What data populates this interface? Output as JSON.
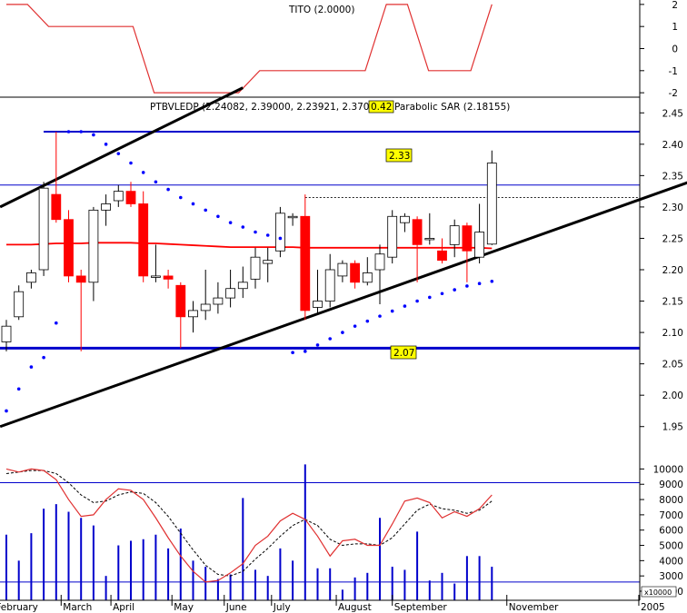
{
  "colors": {
    "background": "#ffffff",
    "indicator_line": "#e03030",
    "candle_down": "#ff0000",
    "candle_up": "#ffffff",
    "channel": "#000000",
    "levels": "#0000cc",
    "sar_dots": "#0000ff",
    "volume_bars": "#0000cc",
    "oscillator_main": "#e03030",
    "oscillator_signal": "#000000"
  },
  "chart_data": [
    {
      "type": "line",
      "panel": "top",
      "title": "TITO (2.0000)",
      "y_ticks": [
        "2",
        "1",
        "0",
        "-1",
        "-2"
      ],
      "ylim": [
        -2.2,
        2.2
      ],
      "series": [
        {
          "values": [
            2,
            2,
            1,
            1,
            1,
            1,
            1,
            -2,
            -2,
            -2,
            -2,
            -2,
            -1,
            -1,
            -1,
            -1,
            -1,
            -1,
            2,
            2,
            -1,
            -1,
            -1,
            2
          ]
        }
      ]
    },
    {
      "type": "candlestick",
      "panel": "main",
      "title": "PTBVLEDP (2.24082, 2.39000, 2.23921, 2.37000)",
      "badge": "0.42",
      "sar_label": "Parabolic SAR (2.18155)",
      "y_ticks": [
        "2.45",
        "2.40",
        "2.35",
        "2.30",
        "2.25",
        "2.20",
        "2.15",
        "2.10",
        "2.05",
        "2.00",
        "1.95"
      ],
      "ylim": [
        1.925,
        2.475
      ],
      "resistance": 2.42,
      "support": 2.075,
      "secondary_resistance": 2.335,
      "dashed_level": 2.315,
      "label_high": "2.33",
      "label_low": "2.07",
      "candles": [
        {
          "o": 2.085,
          "h": 2.12,
          "l": 2.07,
          "c": 2.11
        },
        {
          "o": 2.125,
          "h": 2.175,
          "l": 2.12,
          "c": 2.165
        },
        {
          "o": 2.18,
          "h": 2.2,
          "l": 2.17,
          "c": 2.195
        },
        {
          "o": 2.2,
          "h": 2.34,
          "l": 2.19,
          "c": 2.33
        },
        {
          "o": 2.32,
          "h": 2.42,
          "l": 2.275,
          "c": 2.28
        },
        {
          "o": 2.28,
          "h": 2.295,
          "l": 2.18,
          "c": 2.19
        },
        {
          "o": 2.19,
          "h": 2.2,
          "l": 2.07,
          "c": 2.18
        },
        {
          "o": 2.18,
          "h": 2.3,
          "l": 2.15,
          "c": 2.295
        },
        {
          "o": 2.295,
          "h": 2.32,
          "l": 2.27,
          "c": 2.305
        },
        {
          "o": 2.31,
          "h": 2.335,
          "l": 2.3,
          "c": 2.325
        },
        {
          "o": 2.325,
          "h": 2.34,
          "l": 2.3,
          "c": 2.305
        },
        {
          "o": 2.305,
          "h": 2.325,
          "l": 2.18,
          "c": 2.19
        },
        {
          "o": 2.19,
          "h": 2.24,
          "l": 2.18,
          "c": 2.19
        },
        {
          "o": 2.19,
          "h": 2.2,
          "l": 2.17,
          "c": 2.185
        },
        {
          "o": 2.175,
          "h": 2.18,
          "l": 2.075,
          "c": 2.125
        },
        {
          "o": 2.125,
          "h": 2.15,
          "l": 2.1,
          "c": 2.135
        },
        {
          "o": 2.135,
          "h": 2.2,
          "l": 2.12,
          "c": 2.145
        },
        {
          "o": 2.145,
          "h": 2.18,
          "l": 2.13,
          "c": 2.155
        },
        {
          "o": 2.155,
          "h": 2.2,
          "l": 2.14,
          "c": 2.17
        },
        {
          "o": 2.17,
          "h": 2.205,
          "l": 2.155,
          "c": 2.18
        },
        {
          "o": 2.185,
          "h": 2.235,
          "l": 2.17,
          "c": 2.22
        },
        {
          "o": 2.21,
          "h": 2.235,
          "l": 2.18,
          "c": 2.215
        },
        {
          "o": 2.23,
          "h": 2.3,
          "l": 2.22,
          "c": 2.29
        },
        {
          "o": 2.285,
          "h": 2.29,
          "l": 2.27,
          "c": 2.285
        },
        {
          "o": 2.285,
          "h": 2.32,
          "l": 2.12,
          "c": 2.135
        },
        {
          "o": 2.14,
          "h": 2.2,
          "l": 2.13,
          "c": 2.15
        },
        {
          "o": 2.15,
          "h": 2.225,
          "l": 2.14,
          "c": 2.2
        },
        {
          "o": 2.19,
          "h": 2.215,
          "l": 2.18,
          "c": 2.21
        },
        {
          "o": 2.21,
          "h": 2.215,
          "l": 2.17,
          "c": 2.18
        },
        {
          "o": 2.18,
          "h": 2.22,
          "l": 2.175,
          "c": 2.195
        },
        {
          "o": 2.2,
          "h": 2.24,
          "l": 2.145,
          "c": 2.225
        },
        {
          "o": 2.22,
          "h": 2.295,
          "l": 2.21,
          "c": 2.285
        },
        {
          "o": 2.275,
          "h": 2.29,
          "l": 2.26,
          "c": 2.285
        },
        {
          "o": 2.28,
          "h": 2.285,
          "l": 2.18,
          "c": 2.24
        },
        {
          "o": 2.25,
          "h": 2.29,
          "l": 2.24,
          "c": 2.25
        },
        {
          "o": 2.23,
          "h": 2.25,
          "l": 2.21,
          "c": 2.215
        },
        {
          "o": 2.24,
          "h": 2.28,
          "l": 2.22,
          "c": 2.27
        },
        {
          "o": 2.27,
          "h": 2.275,
          "l": 2.18,
          "c": 2.23
        },
        {
          "o": 2.22,
          "h": 2.305,
          "l": 2.21,
          "c": 2.26
        },
        {
          "o": 2.24082,
          "h": 2.39,
          "l": 2.23921,
          "c": 2.37
        }
      ],
      "moving_average": [
        2.24,
        2.24,
        2.24,
        2.241,
        2.242,
        2.242,
        2.242,
        2.243,
        2.243,
        2.243,
        2.243,
        2.242,
        2.242,
        2.241,
        2.24,
        2.239,
        2.238,
        2.237,
        2.236,
        2.236,
        2.236,
        2.236,
        2.236,
        2.236,
        2.235,
        2.235,
        2.235,
        2.235,
        2.235,
        2.235,
        2.235,
        2.235,
        2.235,
        2.235,
        2.235,
        2.235,
        2.235,
        2.235,
        2.235,
        2.234
      ],
      "sar_dots": [
        {
          "i": 0,
          "v": 1.975
        },
        {
          "i": 1,
          "v": 2.01
        },
        {
          "i": 2,
          "v": 2.045
        },
        {
          "i": 3,
          "v": 2.06
        },
        {
          "i": 4,
          "v": 2.115
        },
        {
          "i": 5,
          "v": 2.42
        },
        {
          "i": 6,
          "v": 2.42
        },
        {
          "i": 7,
          "v": 2.415
        },
        {
          "i": 8,
          "v": 2.4
        },
        {
          "i": 9,
          "v": 2.385
        },
        {
          "i": 10,
          "v": 2.37
        },
        {
          "i": 11,
          "v": 2.355
        },
        {
          "i": 12,
          "v": 2.34
        },
        {
          "i": 13,
          "v": 2.328
        },
        {
          "i": 14,
          "v": 2.315
        },
        {
          "i": 15,
          "v": 2.305
        },
        {
          "i": 16,
          "v": 2.295
        },
        {
          "i": 17,
          "v": 2.285
        },
        {
          "i": 18,
          "v": 2.275
        },
        {
          "i": 19,
          "v": 2.268
        },
        {
          "i": 20,
          "v": 2.26
        },
        {
          "i": 21,
          "v": 2.255
        },
        {
          "i": 22,
          "v": 2.25
        },
        {
          "i": 23,
          "v": 2.068
        },
        {
          "i": 24,
          "v": 2.07
        },
        {
          "i": 25,
          "v": 2.08
        },
        {
          "i": 26,
          "v": 2.09
        },
        {
          "i": 27,
          "v": 2.1
        },
        {
          "i": 28,
          "v": 2.11
        },
        {
          "i": 29,
          "v": 2.118
        },
        {
          "i": 30,
          "v": 2.126
        },
        {
          "i": 31,
          "v": 2.134
        },
        {
          "i": 32,
          "v": 2.142
        },
        {
          "i": 33,
          "v": 2.15
        },
        {
          "i": 34,
          "v": 2.156
        },
        {
          "i": 35,
          "v": 2.162
        },
        {
          "i": 36,
          "v": 2.168
        },
        {
          "i": 37,
          "v": 2.174
        },
        {
          "i": 38,
          "v": 2.178
        },
        {
          "i": 39,
          "v": 2.18155
        }
      ],
      "channel_lines": [
        {
          "x": [
            -0.5,
            19
          ],
          "y": [
            2.3,
            2.49
          ]
        },
        {
          "x": [
            -0.5,
            57
          ],
          "y": [
            1.95,
            2.355
          ]
        }
      ]
    },
    {
      "type": "bar",
      "panel": "volume",
      "y_ticks": [
        "10000",
        "9000",
        "8000",
        "7000",
        "6000",
        "5000",
        "4000",
        "3000",
        "2000"
      ],
      "y_unit": "x10000",
      "ylim": [
        2000,
        10500
      ],
      "upper_level": 9100,
      "lower_level": 2600,
      "x_labels": [
        "February",
        "March",
        "April",
        "May",
        "June",
        "July",
        "August",
        "September",
        "November",
        "2005"
      ],
      "x_label_positions": [
        -1,
        4.4,
        8.4,
        13.3,
        17.5,
        21.3,
        26.5,
        31,
        40.2,
        50.8
      ],
      "volume": [
        {
          "i": 0,
          "v": 5700
        },
        {
          "i": 1,
          "v": 4000
        },
        {
          "i": 2,
          "v": 5800
        },
        {
          "i": 3,
          "v": 7400
        },
        {
          "i": 4,
          "v": 7700
        },
        {
          "i": 5,
          "v": 7200
        },
        {
          "i": 6,
          "v": 6800
        },
        {
          "i": 7,
          "v": 6300
        },
        {
          "i": 8,
          "v": 3000
        },
        {
          "i": 9,
          "v": 5000
        },
        {
          "i": 10,
          "v": 5300
        },
        {
          "i": 11,
          "v": 5400
        },
        {
          "i": 12,
          "v": 5700
        },
        {
          "i": 13,
          "v": 4800
        },
        {
          "i": 14,
          "v": 6100
        },
        {
          "i": 15,
          "v": 4000
        },
        {
          "i": 16,
          "v": 3600
        },
        {
          "i": 17,
          "v": 2800
        },
        {
          "i": 18,
          "v": 3100
        },
        {
          "i": 19,
          "v": 8100
        },
        {
          "i": 20,
          "v": 3400
        },
        {
          "i": 21,
          "v": 3000
        },
        {
          "i": 22,
          "v": 4800
        },
        {
          "i": 23,
          "v": 4000
        },
        {
          "i": 24,
          "v": 10300
        },
        {
          "i": 25,
          "v": 3500
        },
        {
          "i": 26,
          "v": 3500
        },
        {
          "i": 27,
          "v": 2100
        },
        {
          "i": 28,
          "v": 2900
        },
        {
          "i": 29,
          "v": 3200
        },
        {
          "i": 30,
          "v": 6800
        },
        {
          "i": 31,
          "v": 3600
        },
        {
          "i": 32,
          "v": 3400
        },
        {
          "i": 33,
          "v": 5900
        },
        {
          "i": 34,
          "v": 2700
        },
        {
          "i": 35,
          "v": 3200
        },
        {
          "i": 36,
          "v": 2500
        },
        {
          "i": 37,
          "v": 4300
        },
        {
          "i": 38,
          "v": 4300
        },
        {
          "i": 39,
          "v": 3600
        }
      ],
      "oscillator": [
        10000,
        9800,
        10000,
        9900,
        9300,
        8000,
        6900,
        7000,
        8000,
        8700,
        8600,
        8000,
        6800,
        5500,
        4300,
        3300,
        2600,
        2700,
        3200,
        3800,
        5000,
        5600,
        6600,
        7100,
        6700,
        5600,
        4300,
        5300,
        5400,
        5000,
        5000,
        6400,
        7900,
        8100,
        7800,
        6800,
        7200,
        6900,
        7400,
        8300
      ],
      "signal": [
        9700,
        9800,
        9900,
        9900,
        9700,
        9100,
        8300,
        7800,
        7900,
        8300,
        8500,
        8400,
        7800,
        6900,
        5800,
        4700,
        3700,
        3100,
        3000,
        3300,
        4100,
        4800,
        5600,
        6300,
        6700,
        6300,
        5400,
        5000,
        5100,
        5100,
        5000,
        5500,
        6400,
        7300,
        7700,
        7400,
        7300,
        7100,
        7300,
        7900
      ]
    }
  ]
}
